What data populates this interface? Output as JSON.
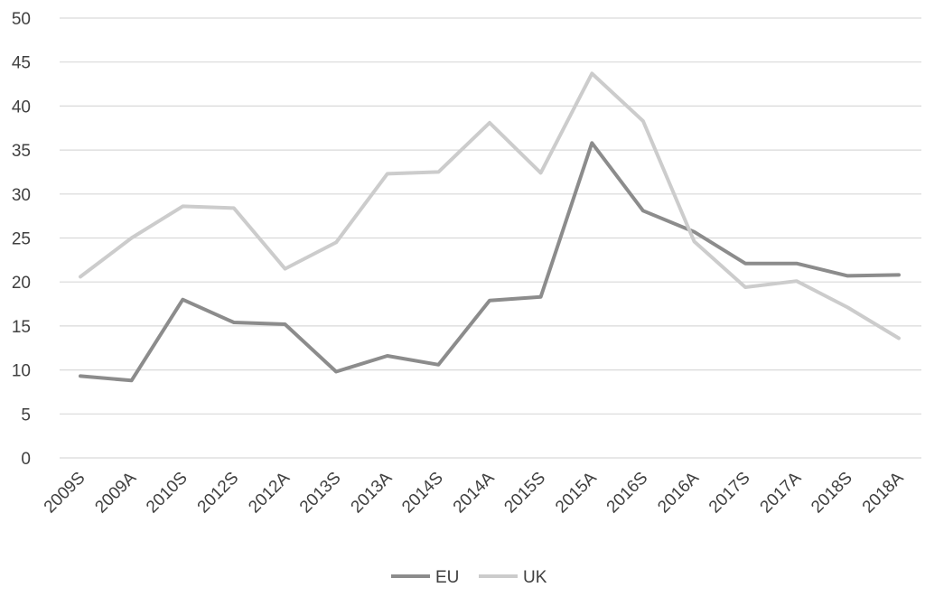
{
  "chart_data": {
    "type": "line",
    "categories": [
      "2009S",
      "2009A",
      "2010S",
      "2012S",
      "2012A",
      "2013S",
      "2013A",
      "2014S",
      "2014A",
      "2015S",
      "2015A",
      "2016S",
      "2016A",
      "2017S",
      "2017A",
      "2018S",
      "2018A"
    ],
    "series": [
      {
        "name": "EU",
        "color": "#8c8c8c",
        "values": [
          9.3,
          8.8,
          18.0,
          15.4,
          15.2,
          9.8,
          11.6,
          10.6,
          17.9,
          18.3,
          35.8,
          28.1,
          25.7,
          22.1,
          22.1,
          20.7,
          20.8
        ]
      },
      {
        "name": "UK",
        "color": "#cccccc",
        "values": [
          20.6,
          25.0,
          28.6,
          28.4,
          21.5,
          24.5,
          32.3,
          32.5,
          38.1,
          32.4,
          43.7,
          38.3,
          24.6,
          19.4,
          20.1,
          17.1,
          13.6
        ]
      }
    ],
    "ylim": [
      0,
      50
    ],
    "yticks": [
      "0",
      "5",
      "10",
      "15",
      "20",
      "25",
      "30",
      "35",
      "40",
      "45",
      "50"
    ],
    "grid": true,
    "legend_position": "bottom"
  }
}
